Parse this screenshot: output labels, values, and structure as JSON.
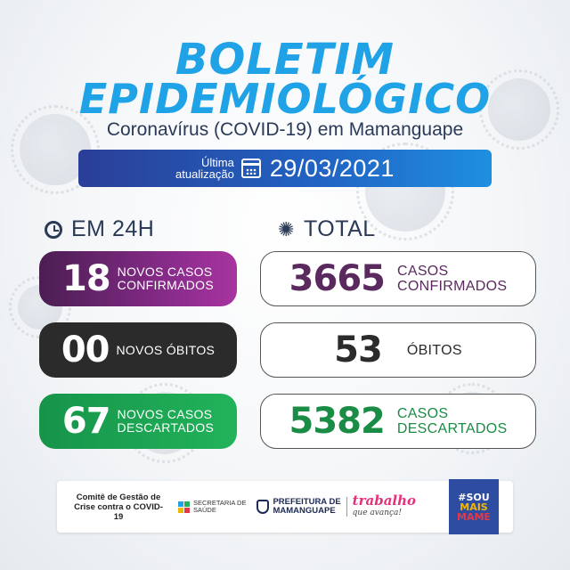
{
  "header": {
    "title_line1": "BOLETIM",
    "title_line2": "EPIDEMIOLÓGICO",
    "subtitle": "Coronavírus (COVID-19) em Mamanguape"
  },
  "update": {
    "label_line1": "Última",
    "label_line2": "atualização",
    "icon": "calendar-icon",
    "date": "29/03/2021"
  },
  "last24h": {
    "heading": "EM 24H",
    "icon": "clock-icon",
    "cards": [
      {
        "value": "18",
        "label_line1": "NOVOS CASOS",
        "label_line2": "CONFIRMADOS",
        "color": "#8c2c8e"
      },
      {
        "value": "00",
        "label_line1": "NOVOS ÓBITOS",
        "label_line2": "",
        "color": "#2b2b2b"
      },
      {
        "value": "67",
        "label_line1": "NOVOS CASOS",
        "label_line2": "DESCARTADOS",
        "color": "#22b35a"
      }
    ]
  },
  "total": {
    "heading": "TOTAL",
    "icon": "virus-icon",
    "cards": [
      {
        "value": "3665",
        "label_line1": "CASOS",
        "label_line2": "CONFIRMADOS",
        "color": "#5a2a5e"
      },
      {
        "value": "53",
        "label_line1": "ÓBITOS",
        "label_line2": "",
        "color": "#2b2b2b"
      },
      {
        "value": "5382",
        "label_line1": "CASOS",
        "label_line2": "DESCARTADOS",
        "color": "#1a8c45"
      }
    ]
  },
  "footer": {
    "comite_line1": "Comitê de Gestão de",
    "comite_line2": "Crise contra o COVID-19",
    "secretaria_line1": "SECRETARIA DE",
    "secretaria_line2": "SAÚDE",
    "prefeitura_line1": "PREFEITURA DE",
    "prefeitura_line2": "MAMANGUAPE",
    "slogan_main": "trabalho",
    "slogan_sub": "que avança!",
    "badge_line1": "#SOU",
    "badge_line2": "MAIS",
    "badge_line3": "MAME"
  }
}
